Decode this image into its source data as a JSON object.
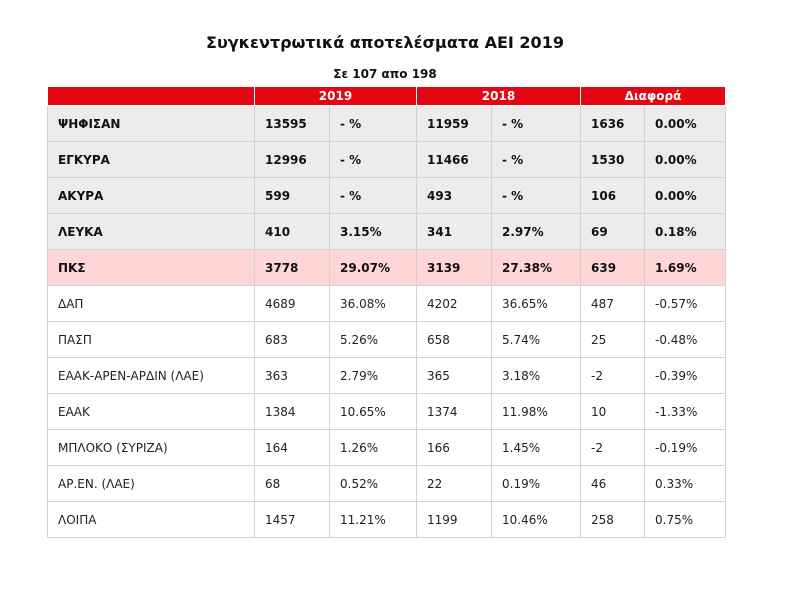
{
  "page": {
    "title": "Συγκεντρωτικά αποτελέσματα ΑΕΙ 2019",
    "subtitle": "Σε 107 απο 198"
  },
  "table": {
    "headers": [
      "2019",
      "2018",
      "Διαφορά"
    ],
    "rows": [
      {
        "label": "ΨΗΦΙΣΑΝ",
        "v2019": "13595",
        "p2019": "- %",
        "v2018": "11959",
        "p2018": "- %",
        "diff": "1636",
        "pdiff": "0.00%"
      },
      {
        "label": "ΕΓΚΥΡΑ",
        "v2019": "12996",
        "p2019": "- %",
        "v2018": "11466",
        "p2018": "- %",
        "diff": "1530",
        "pdiff": "0.00%"
      },
      {
        "label": "ΑΚΥΡΑ",
        "v2019": "599",
        "p2019": "- %",
        "v2018": "493",
        "p2018": "- %",
        "diff": "106",
        "pdiff": "0.00%"
      },
      {
        "label": "ΛΕΥΚΑ",
        "v2019": "410",
        "p2019": "3.15%",
        "v2018": "341",
        "p2018": "2.97%",
        "diff": "69",
        "pdiff": "0.18%"
      },
      {
        "label": "ΠΚΣ",
        "v2019": "3778",
        "p2019": "29.07%",
        "v2018": "3139",
        "p2018": "27.38%",
        "diff": "639",
        "pdiff": "1.69%"
      },
      {
        "label": "ΔΑΠ",
        "v2019": "4689",
        "p2019": "36.08%",
        "v2018": "4202",
        "p2018": "36.65%",
        "diff": "487",
        "pdiff": "-0.57%"
      },
      {
        "label": "ΠΑΣΠ",
        "v2019": "683",
        "p2019": "5.26%",
        "v2018": "658",
        "p2018": "5.74%",
        "diff": "25",
        "pdiff": "-0.48%"
      },
      {
        "label": "ΕΑΑΚ-ΑΡΕΝ-ΑΡΔΙΝ (ΛΑΕ)",
        "v2019": "363",
        "p2019": "2.79%",
        "v2018": "365",
        "p2018": "3.18%",
        "diff": "-2",
        "pdiff": "-0.39%"
      },
      {
        "label": "ΕΑΑΚ",
        "v2019": "1384",
        "p2019": "10.65%",
        "v2018": "1374",
        "p2018": "11.98%",
        "diff": "10",
        "pdiff": "-1.33%"
      },
      {
        "label": "ΜΠΛΟΚΟ (ΣΥΡΙΖΑ)",
        "v2019": "164",
        "p2019": "1.26%",
        "v2018": "166",
        "p2018": "1.45%",
        "diff": "-2",
        "pdiff": "-0.19%"
      },
      {
        "label": "ΑΡ.ΕΝ. (ΛΑΕ)",
        "v2019": "68",
        "p2019": "0.52%",
        "v2018": "22",
        "p2018": "0.19%",
        "diff": "46",
        "pdiff": "0.33%"
      },
      {
        "label": "ΛΟΙΠΑ",
        "v2019": "1457",
        "p2019": "11.21%",
        "v2018": "1199",
        "p2018": "10.46%",
        "diff": "258",
        "pdiff": "0.75%"
      }
    ]
  },
  "colors": {
    "header_bg": "#e30613",
    "summary_bg": "#ececec",
    "highlight_bg": "#ffd6d6"
  }
}
